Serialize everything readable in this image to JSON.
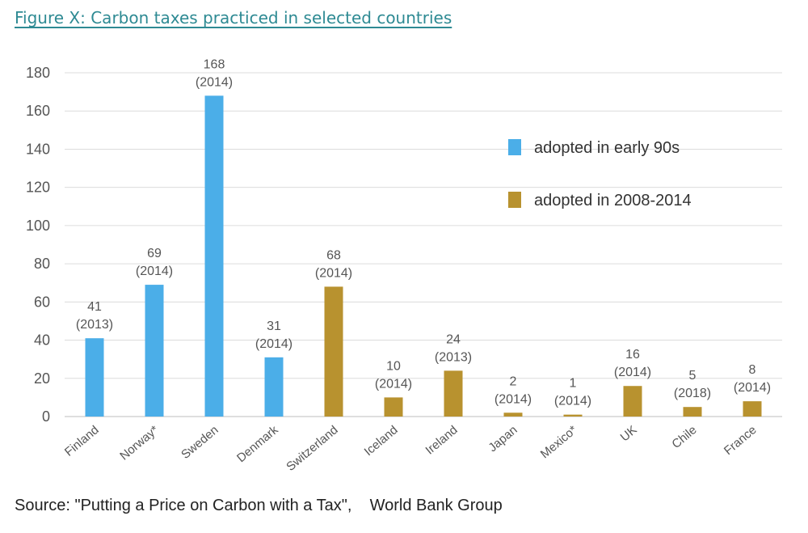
{
  "figure_title": "Figure X: Carbon taxes practiced in selected countries",
  "source_text": "Source: \"Putting a Price on Carbon with a Tax\",    World Bank Group",
  "chart_data": {
    "type": "bar",
    "title": "Figure X: Carbon taxes practiced in selected countries",
    "xlabel": "",
    "ylabel": "",
    "ylim": [
      0,
      180
    ],
    "yticks": [
      0,
      20,
      40,
      60,
      80,
      100,
      120,
      140,
      160,
      180
    ],
    "grid": true,
    "legend_position": "top-right",
    "categories": [
      "Finland",
      "Norway*",
      "Sweden",
      "Denmark",
      "Switzerland",
      "Iceland",
      "Ireland",
      "Japan",
      "Mexico*",
      "UK",
      "Chile",
      "France"
    ],
    "values": [
      41,
      69,
      168,
      31,
      68,
      10,
      24,
      2,
      1,
      16,
      5,
      8
    ],
    "years": [
      "(2013)",
      "(2014)",
      "(2014)",
      "(2014)",
      "(2014)",
      "(2014)",
      "(2013)",
      "(2014)",
      "(2014)",
      "(2014)",
      "(2018)",
      "(2014)"
    ],
    "groups": [
      0,
      0,
      0,
      0,
      1,
      1,
      1,
      1,
      1,
      1,
      1,
      1
    ],
    "series": [
      {
        "name": "adopted in early 90s",
        "color": "#4baee8"
      },
      {
        "name": "adopted in 2008-2014",
        "color": "#b8922f"
      }
    ]
  }
}
